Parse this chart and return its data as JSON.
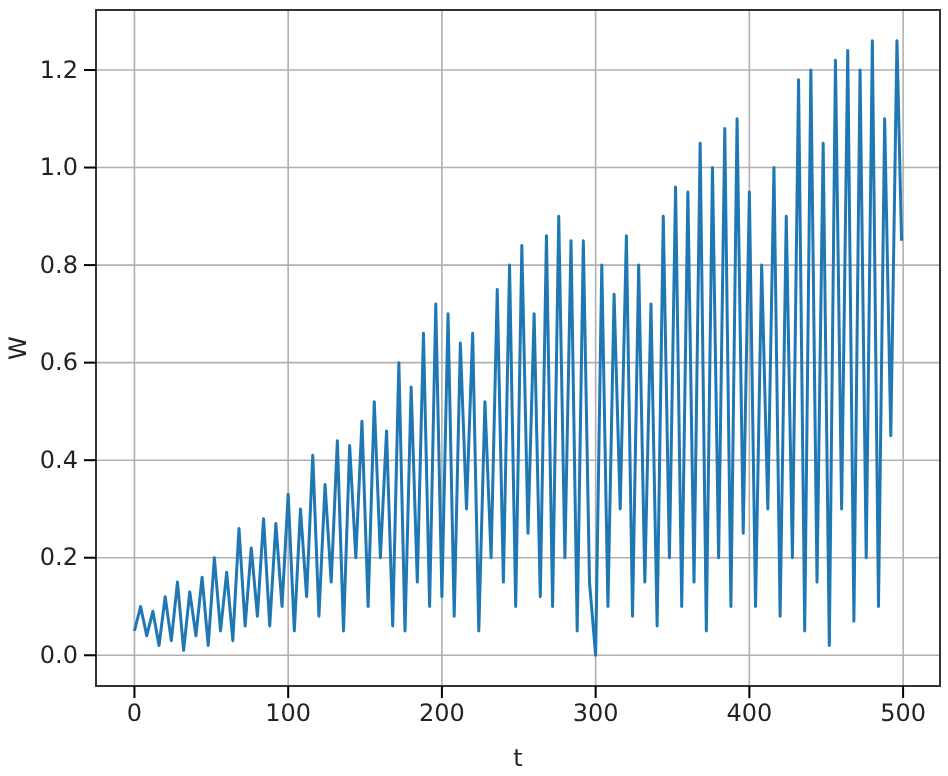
{
  "chart_data": {
    "type": "line",
    "xlabel": "t",
    "ylabel": "W",
    "xlim": [
      -25,
      524
    ],
    "ylim": [
      -0.063,
      1.323
    ],
    "xticks": [
      0,
      100,
      200,
      300,
      400,
      500
    ],
    "yticks": [
      {
        "value": 0,
        "label": "0.0"
      },
      {
        "value": 0.2,
        "label": "0.2"
      },
      {
        "value": 0.4,
        "label": "0.4"
      },
      {
        "value": 0.6,
        "label": "0.6"
      },
      {
        "value": 0.8,
        "label": "0.8"
      },
      {
        "value": 1.0,
        "label": "1.0"
      },
      {
        "value": 1.2,
        "label": "1.2"
      }
    ],
    "grid": true,
    "line_style": "solid",
    "marker": "none",
    "x": [
      0,
      4,
      8,
      12,
      16,
      20,
      24,
      28,
      32,
      36,
      40,
      44,
      48,
      52,
      56,
      60,
      64,
      68,
      72,
      76,
      80,
      84,
      88,
      92,
      96,
      100,
      104,
      108,
      112,
      116,
      120,
      124,
      128,
      132,
      136,
      140,
      144,
      148,
      152,
      156,
      160,
      164,
      168,
      172,
      176,
      180,
      184,
      188,
      192,
      196,
      200,
      204,
      208,
      212,
      216,
      220,
      224,
      228,
      232,
      236,
      240,
      244,
      248,
      252,
      256,
      260,
      264,
      268,
      272,
      276,
      280,
      284,
      288,
      292,
      296,
      300,
      304,
      308,
      312,
      316,
      320,
      324,
      328,
      332,
      336,
      340,
      344,
      348,
      352,
      356,
      360,
      364,
      368,
      372,
      376,
      380,
      384,
      388,
      392,
      396,
      400,
      404,
      408,
      412,
      416,
      420,
      424,
      428,
      432,
      436,
      440,
      444,
      448,
      452,
      456,
      460,
      464,
      468,
      472,
      476,
      480,
      484,
      488,
      492,
      496,
      499
    ],
    "series": [
      {
        "color": "#1f77b4",
        "values": [
          0.05,
          0.1,
          0.04,
          0.09,
          0.02,
          0.12,
          0.03,
          0.15,
          0.01,
          0.13,
          0.04,
          0.16,
          0.02,
          0.2,
          0.05,
          0.17,
          0.03,
          0.26,
          0.06,
          0.22,
          0.08,
          0.28,
          0.06,
          0.27,
          0.1,
          0.33,
          0.05,
          0.3,
          0.12,
          0.41,
          0.08,
          0.35,
          0.15,
          0.44,
          0.05,
          0.43,
          0.2,
          0.48,
          0.1,
          0.52,
          0.2,
          0.46,
          0.06,
          0.6,
          0.05,
          0.55,
          0.15,
          0.66,
          0.1,
          0.72,
          0.12,
          0.7,
          0.08,
          0.64,
          0.3,
          0.66,
          0.05,
          0.52,
          0.2,
          0.75,
          0.15,
          0.8,
          0.1,
          0.84,
          0.25,
          0.7,
          0.12,
          0.86,
          0.1,
          0.9,
          0.2,
          0.85,
          0.05,
          0.85,
          0.15,
          0.0,
          0.8,
          0.1,
          0.74,
          0.3,
          0.86,
          0.08,
          0.8,
          0.15,
          0.72,
          0.06,
          0.9,
          0.2,
          0.96,
          0.1,
          0.95,
          0.15,
          1.05,
          0.05,
          1.0,
          0.2,
          1.08,
          0.1,
          1.1,
          0.25,
          0.95,
          0.1,
          0.8,
          0.3,
          1.0,
          0.08,
          0.9,
          0.2,
          1.18,
          0.05,
          1.2,
          0.15,
          1.05,
          0.02,
          1.22,
          0.3,
          1.24,
          0.07,
          1.2,
          0.2,
          1.26,
          0.1,
          1.1,
          0.45,
          1.26,
          0.85
        ]
      }
    ]
  }
}
